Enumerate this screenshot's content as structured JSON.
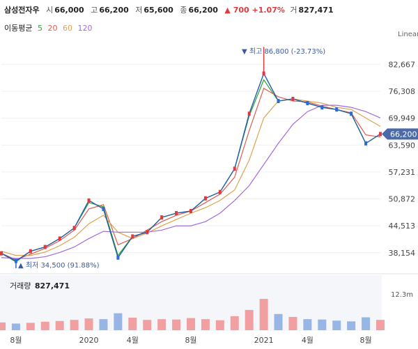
{
  "header": {
    "name": "삼성전자우",
    "open_label": "시",
    "open": "66,000",
    "high_label": "고",
    "high": "66,200",
    "low_label": "저",
    "low": "65,600",
    "close_label": "종",
    "close": "66,200",
    "change": "▲ 700 +1.07%",
    "volume_label": "거",
    "volume": "827,471"
  },
  "moving_averages": {
    "label": "이동평균",
    "periods": [
      {
        "value": "5",
        "color": "#2aa32a"
      },
      {
        "value": "20",
        "color": "#e05a4e"
      },
      {
        "value": "60",
        "color": "#e0a050"
      },
      {
        "value": "120",
        "color": "#a46ad8"
      }
    ]
  },
  "scale_mode": "Linear",
  "price_axis": {
    "ticks": [
      "82,667",
      "76,308",
      "69,949",
      "63,590",
      "57,231",
      "50,872",
      "44,513",
      "38,154"
    ],
    "current_price": "66,200",
    "current_color": "#4a6aa8"
  },
  "annotations": {
    "max": "▼ 최고 86,800 (-23.73%)",
    "min": "▲ 최저 34,500 (91.88%)"
  },
  "volume": {
    "label": "거래량",
    "value": "827,471",
    "axis_tick": "12.3m"
  },
  "time_axis": [
    "8월",
    "2020",
    "4월",
    "8월",
    "2021",
    "4월",
    "8월"
  ],
  "chart_data": {
    "type": "line",
    "title": "삼성전자우",
    "x": [
      "2019-07",
      "2019-08",
      "2019-09",
      "2019-10",
      "2019-11",
      "2019-12",
      "2020-01",
      "2020-02",
      "2020-03",
      "2020-04",
      "2020-05",
      "2020-06",
      "2020-07",
      "2020-08",
      "2020-09",
      "2020-10",
      "2020-11",
      "2020-12",
      "2021-01",
      "2021-02",
      "2021-03",
      "2021-04",
      "2021-05",
      "2021-06",
      "2021-07",
      "2021-08",
      "2021-09"
    ],
    "series": [
      {
        "name": "5",
        "color": "#2aa32a",
        "values": [
          38000,
          36000,
          38500,
          39500,
          41500,
          44000,
          50000,
          49000,
          37500,
          42000,
          43000,
          46500,
          47500,
          48000,
          51000,
          52500,
          58000,
          70500,
          79000,
          74000,
          74500,
          73500,
          72500,
          72000,
          71000,
          64000,
          66200
        ]
      },
      {
        "name": "20",
        "color": "#e05a4e",
        "values": [
          38000,
          36500,
          37800,
          39200,
          41000,
          43500,
          48500,
          49500,
          40000,
          41500,
          43500,
          45500,
          47000,
          48000,
          50000,
          52000,
          56000,
          67000,
          77000,
          75000,
          74000,
          73800,
          72800,
          72000,
          71200,
          66000,
          65500
        ]
      },
      {
        "name": "60",
        "color": "#e0a050",
        "values": [
          38500,
          37500,
          37500,
          38300,
          39800,
          41800,
          45000,
          47000,
          43000,
          41500,
          42800,
          44500,
          46000,
          47500,
          48800,
          50500,
          53000,
          60000,
          70000,
          74000,
          74500,
          74000,
          73500,
          72500,
          72000,
          70000,
          68000
        ]
      },
      {
        "name": "120",
        "color": "#a46ad8",
        "values": [
          37000,
          36800,
          36800,
          37200,
          38200,
          39500,
          41500,
          43200,
          43000,
          43000,
          43000,
          43500,
          44500,
          44500,
          45500,
          47500,
          50500,
          54000,
          59000,
          64000,
          68500,
          71500,
          73000,
          73000,
          72500,
          71500,
          70000
        ]
      }
    ],
    "price": {
      "values": [
        38000,
        36200,
        38500,
        39500,
        41500,
        44000,
        50500,
        48500,
        37000,
        42000,
        43000,
        46500,
        47500,
        48000,
        51000,
        52500,
        58000,
        71000,
        80500,
        74000,
        74500,
        73500,
        72500,
        72000,
        71000,
        64000,
        66200
      ]
    },
    "volume_values_m": [
      2.1,
      1.8,
      2.0,
      2.3,
      2.5,
      2.8,
      3.2,
      3.0,
      4.6,
      3.4,
      2.8,
      3.0,
      2.9,
      3.3,
      3.0,
      2.7,
      3.8,
      5.5,
      8.5,
      4.4,
      3.6,
      3.0,
      2.9,
      2.6,
      2.4,
      3.5,
      2.8
    ],
    "max": {
      "x": "2021-01",
      "value": 86800
    },
    "min": {
      "x": "2019-08",
      "value": 34500
    },
    "ylim": [
      34000,
      88000
    ],
    "volume_ylim_m": [
      0,
      14
    ],
    "xlabel": "",
    "ylabel": ""
  }
}
